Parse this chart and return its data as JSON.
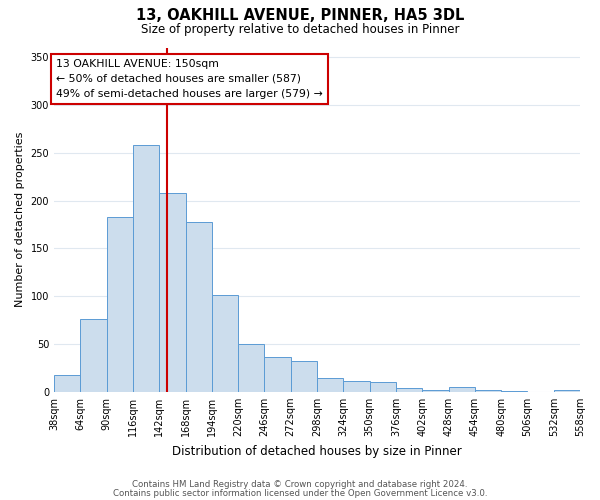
{
  "title": "13, OAKHILL AVENUE, PINNER, HA5 3DL",
  "subtitle": "Size of property relative to detached houses in Pinner",
  "xlabel": "Distribution of detached houses by size in Pinner",
  "ylabel": "Number of detached properties",
  "bar_edges": [
    38,
    64,
    90,
    116,
    142,
    168,
    194,
    220,
    246,
    272,
    298,
    324,
    350,
    376,
    402,
    428,
    454,
    480,
    506,
    532,
    558
  ],
  "bar_heights": [
    18,
    76,
    183,
    258,
    208,
    178,
    101,
    50,
    36,
    32,
    14,
    11,
    10,
    4,
    2,
    5,
    2,
    1,
    0,
    2
  ],
  "bar_color": "#ccdded",
  "bar_edgecolor": "#5b9bd5",
  "property_line_x": 150,
  "property_line_color": "#cc0000",
  "annotation_title": "13 OAKHILL AVENUE: 150sqm",
  "annotation_line1": "← 50% of detached houses are smaller (587)",
  "annotation_line2": "49% of semi-detached houses are larger (579) →",
  "annotation_box_color": "#ffffff",
  "annotation_box_edgecolor": "#cc0000",
  "ylim": [
    0,
    360
  ],
  "yticks": [
    0,
    50,
    100,
    150,
    200,
    250,
    300,
    350
  ],
  "tick_labels": [
    "38sqm",
    "64sqm",
    "90sqm",
    "116sqm",
    "142sqm",
    "168sqm",
    "194sqm",
    "220sqm",
    "246sqm",
    "272sqm",
    "298sqm",
    "324sqm",
    "350sqm",
    "376sqm",
    "402sqm",
    "428sqm",
    "454sqm",
    "480sqm",
    "506sqm",
    "532sqm",
    "558sqm"
  ],
  "footer_line1": "Contains HM Land Registry data © Crown copyright and database right 2024.",
  "footer_line2": "Contains public sector information licensed under the Open Government Licence v3.0.",
  "background_color": "#ffffff",
  "plot_bg_color": "#ffffff",
  "grid_color": "#e0e8f0"
}
